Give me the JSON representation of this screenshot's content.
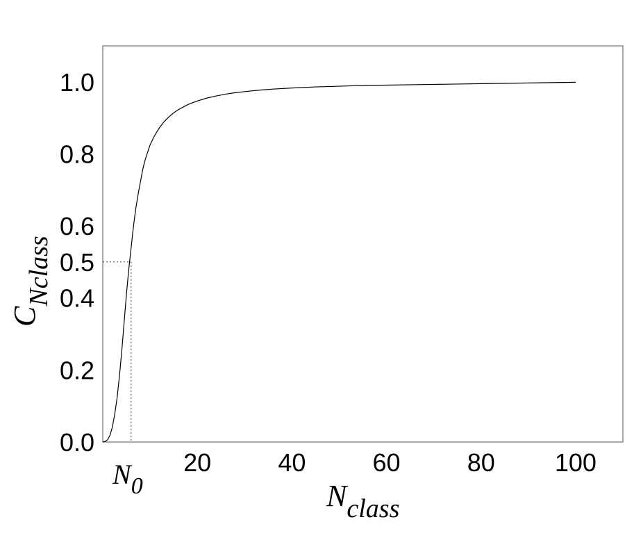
{
  "chart_data": {
    "type": "line",
    "xlabel": {
      "main": "N",
      "sub": "class"
    },
    "ylabel": {
      "main": "C",
      "sub": "Nclass"
    },
    "xlim": [
      0,
      110
    ],
    "ylim": [
      0,
      1.1
    ],
    "xticks": [
      20,
      40,
      60,
      80,
      100
    ],
    "xtick_labels": [
      "20",
      "40",
      "60",
      "80",
      "100"
    ],
    "yticks": [
      0.0,
      0.2,
      0.4,
      0.5,
      0.6,
      0.8,
      1.0
    ],
    "ytick_labels": [
      "0.0",
      "0.2",
      "0.4",
      "0.5",
      "0.6",
      "0.8",
      "1.0"
    ],
    "grid": false,
    "annotation": {
      "x_label": {
        "main": "N",
        "sub": "0"
      },
      "x": 6,
      "y": 0.5,
      "style": "dashed"
    },
    "series": [
      {
        "x": [
          0,
          0.5,
          1,
          1.5,
          2,
          2.5,
          3,
          3.5,
          4,
          4.5,
          5,
          5.5,
          6,
          6.5,
          7,
          7.5,
          8,
          8.5,
          9,
          9.5,
          10,
          11,
          12,
          13,
          14,
          15,
          16,
          17,
          18,
          19,
          20,
          22,
          24,
          26,
          28,
          30,
          33,
          36,
          40,
          45,
          50,
          55,
          60,
          65,
          70,
          75,
          80,
          85,
          90,
          95,
          100
        ],
        "y": [
          0,
          0.0015,
          0.006,
          0.018,
          0.04,
          0.075,
          0.12,
          0.18,
          0.25,
          0.33,
          0.41,
          0.48,
          0.54,
          0.6,
          0.65,
          0.69,
          0.725,
          0.76,
          0.785,
          0.805,
          0.825,
          0.852,
          0.873,
          0.89,
          0.903,
          0.914,
          0.923,
          0.93,
          0.937,
          0.942,
          0.947,
          0.955,
          0.961,
          0.966,
          0.97,
          0.973,
          0.977,
          0.98,
          0.983,
          0.986,
          0.988,
          0.99,
          0.991,
          0.992,
          0.993,
          0.994,
          0.995,
          0.996,
          0.997,
          0.998,
          0.999
        ]
      }
    ]
  }
}
